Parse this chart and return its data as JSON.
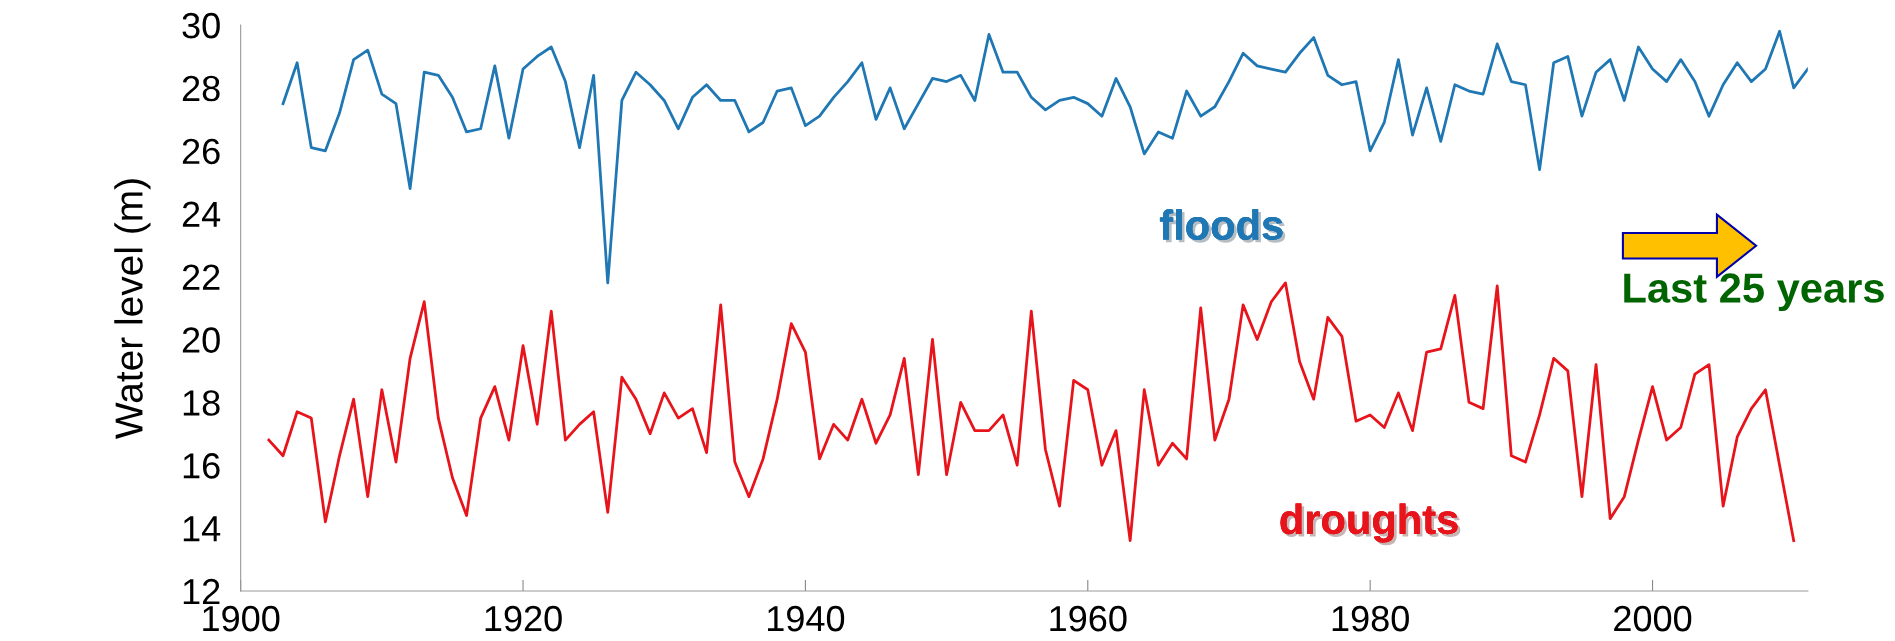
{
  "chart_data": {
    "type": "line",
    "ylabel": "Water level (m)",
    "xlim": [
      1900,
      2011
    ],
    "xticks": [
      1900,
      1920,
      1940,
      1960,
      1980,
      2000
    ],
    "ylim": [
      12,
      30
    ],
    "yticks": [
      12,
      14,
      16,
      18,
      20,
      22,
      24,
      26,
      28,
      30
    ],
    "grid": false,
    "legend": false,
    "marker": "none",
    "line_style": "solid",
    "annotations": [
      "Last 25 years"
    ],
    "series": [
      {
        "name": "floods",
        "color": "#1f77b4",
        "x": [
          1903,
          1904,
          1905,
          1906,
          1907,
          1908,
          1909,
          1910,
          1911,
          1912,
          1913,
          1914,
          1915,
          1916,
          1917,
          1918,
          1919,
          1920,
          1921,
          1922,
          1923,
          1924,
          1925,
          1926,
          1927,
          1928,
          1929,
          1930,
          1931,
          1932,
          1933,
          1934,
          1935,
          1936,
          1937,
          1938,
          1939,
          1940,
          1941,
          1942,
          1943,
          1944,
          1945,
          1946,
          1947,
          1948,
          1949,
          1950,
          1951,
          1952,
          1953,
          1954,
          1955,
          1956,
          1957,
          1958,
          1959,
          1960,
          1961,
          1962,
          1963,
          1964,
          1965,
          1966,
          1967,
          1968,
          1969,
          1970,
          1971,
          1972,
          1973,
          1974,
          1975,
          1976,
          1977,
          1978,
          1979,
          1980,
          1981,
          1982,
          1983,
          1984,
          1985,
          1986,
          1987,
          1988,
          1989,
          1990,
          1991,
          1992,
          1993,
          1994,
          1995,
          1996,
          1997,
          1998,
          1999,
          2000,
          2001,
          2002,
          2003,
          2004,
          2005,
          2006,
          2007,
          2008,
          2009,
          2010,
          2011
        ],
        "values": [
          27.5,
          28.8,
          26.1,
          26.0,
          27.2,
          28.9,
          29.2,
          27.8,
          27.5,
          24.8,
          28.5,
          28.4,
          27.7,
          26.6,
          26.7,
          28.7,
          26.4,
          28.6,
          29.0,
          29.3,
          28.2,
          26.1,
          28.4,
          21.8,
          27.6,
          28.5,
          28.1,
          27.6,
          26.7,
          27.7,
          28.1,
          27.6,
          27.6,
          26.6,
          26.9,
          27.9,
          28.0,
          26.8,
          27.1,
          27.7,
          28.2,
          28.8,
          27.0,
          28.0,
          26.7,
          27.5,
          28.3,
          28.2,
          28.4,
          27.6,
          29.7,
          28.5,
          28.5,
          27.7,
          27.3,
          27.6,
          27.7,
          27.5,
          27.1,
          28.3,
          27.4,
          25.9,
          26.6,
          26.4,
          27.9,
          27.1,
          27.4,
          28.2,
          29.1,
          28.7,
          28.6,
          28.5,
          29.1,
          29.6,
          28.4,
          28.1,
          28.2,
          26.0,
          26.9,
          28.9,
          26.5,
          28.0,
          26.3,
          28.1,
          27.9,
          27.8,
          29.4,
          28.2,
          28.1,
          25.4,
          28.8,
          29.0,
          27.1,
          28.5,
          28.9,
          27.6,
          29.3,
          28.6,
          28.2,
          28.9,
          28.2,
          27.1,
          28.1,
          28.8,
          28.2,
          28.6,
          29.8,
          28.0,
          28.6
        ]
      },
      {
        "name": "droughts",
        "color": "#e8141b",
        "x": [
          1902,
          1903,
          1904,
          1905,
          1906,
          1907,
          1908,
          1909,
          1910,
          1911,
          1912,
          1913,
          1914,
          1915,
          1916,
          1917,
          1918,
          1919,
          1920,
          1921,
          1922,
          1923,
          1924,
          1925,
          1926,
          1927,
          1928,
          1929,
          1930,
          1931,
          1932,
          1933,
          1934,
          1935,
          1936,
          1937,
          1938,
          1939,
          1940,
          1941,
          1942,
          1943,
          1944,
          1945,
          1946,
          1947,
          1948,
          1949,
          1950,
          1951,
          1952,
          1953,
          1954,
          1955,
          1956,
          1957,
          1958,
          1959,
          1960,
          1961,
          1962,
          1963,
          1964,
          1965,
          1966,
          1967,
          1968,
          1969,
          1970,
          1971,
          1972,
          1973,
          1974,
          1975,
          1976,
          1977,
          1978,
          1979,
          1980,
          1981,
          1982,
          1983,
          1984,
          1985,
          1986,
          1987,
          1988,
          1989,
          1990,
          1991,
          1992,
          1993,
          1994,
          1995,
          1996,
          1997,
          1998,
          1999,
          2000,
          2001,
          2002,
          2003,
          2004,
          2005,
          2006,
          2007,
          2008,
          2009,
          2010
        ],
        "values": [
          16.8,
          16.3,
          17.7,
          17.5,
          14.2,
          16.3,
          18.1,
          15.0,
          18.4,
          16.1,
          19.4,
          21.2,
          17.5,
          15.6,
          14.4,
          17.5,
          18.5,
          16.8,
          19.8,
          17.3,
          20.9,
          16.8,
          17.3,
          17.7,
          14.5,
          18.8,
          18.1,
          17.0,
          18.3,
          17.5,
          17.8,
          16.4,
          21.1,
          16.1,
          15.0,
          16.2,
          18.1,
          20.5,
          19.6,
          16.2,
          17.3,
          16.8,
          18.1,
          16.7,
          17.6,
          19.4,
          15.7,
          20.0,
          15.7,
          18.0,
          17.1,
          17.1,
          17.6,
          16.0,
          20.9,
          16.5,
          14.7,
          18.7,
          18.4,
          16.0,
          17.1,
          13.6,
          18.4,
          16.0,
          16.7,
          16.2,
          21.0,
          16.8,
          18.1,
          21.1,
          20.0,
          21.2,
          21.8,
          19.3,
          18.1,
          20.7,
          20.1,
          17.4,
          17.6,
          17.2,
          18.3,
          17.1,
          19.6,
          19.7,
          21.4,
          18.0,
          17.8,
          21.7,
          16.3,
          16.1,
          17.6,
          19.4,
          19.0,
          15.0,
          19.2,
          14.3,
          15.0,
          16.8,
          18.5,
          16.8,
          17.2,
          18.9,
          19.2,
          14.7,
          16.9,
          17.8,
          18.4,
          16.0,
          13.6
        ]
      }
    ]
  }
}
